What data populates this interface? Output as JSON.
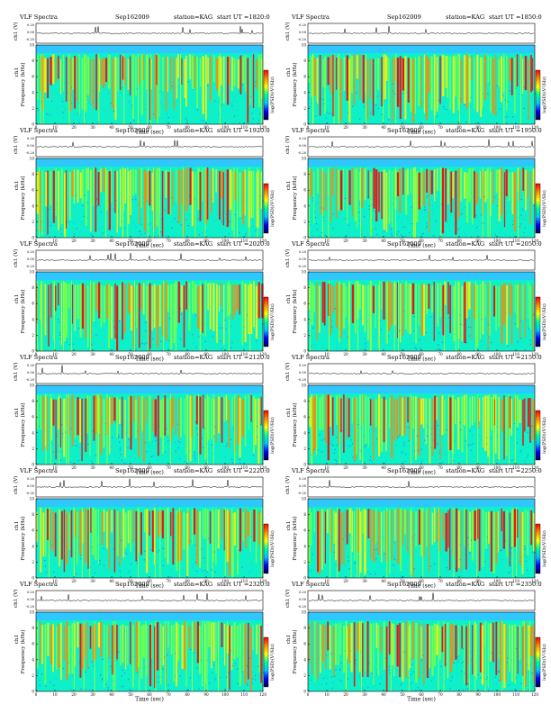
{
  "panels": [
    {
      "name": "VLF Spectra",
      "date": "Sep162009",
      "station": "station=KAG",
      "start": "start  UT  =1820:0"
    },
    {
      "name": "VLF Spectra",
      "date": "Sep162009",
      "station": "station=KAG",
      "start": "start  UT  =1850:0"
    },
    {
      "name": "VLF Spectra",
      "date": "Sep162009",
      "station": "station=KAG",
      "start": "start  UT  =1920:0"
    },
    {
      "name": "VLF Spectra",
      "date": "Sep162009",
      "station": "station=KAG",
      "start": "start  UT  =1950:0"
    },
    {
      "name": "VLF Spectra",
      "date": "Sep162009",
      "station": "station=KAG",
      "start": "start  UT  =2020:0"
    },
    {
      "name": "VLF Spectra",
      "date": "Sep162009",
      "station": "station=KAG",
      "start": "start  UT  =2050:0"
    },
    {
      "name": "VLF Spectra",
      "date": "Sep162009",
      "station": "station=KAG",
      "start": "start  UT  =2120:0"
    },
    {
      "name": "VLF Spectra",
      "date": "Sep162009",
      "station": "station=KAG",
      "start": "start  UT  =2150:0"
    },
    {
      "name": "VLF Spectra",
      "date": "Sep162009",
      "station": "station=KAG",
      "start": "start  UT  =2220:0"
    },
    {
      "name": "VLF Spectra",
      "date": "Sep162009",
      "station": "station=KAG",
      "start": "start  UT  =2250:0"
    },
    {
      "name": "VLF Spectra",
      "date": "Sep162009",
      "station": "station=KAG",
      "start": "start  UT  =2320:0"
    },
    {
      "name": "VLF Spectra",
      "date": "Sep162009",
      "station": "station=KAG",
      "start": "start  UT  =2350:0"
    }
  ],
  "chart_data": {
    "type": "heatmap",
    "panel_count": 12,
    "xlabel": "Time (sec)",
    "xlim": [
      0,
      120
    ],
    "xticks": [
      0,
      10,
      20,
      30,
      40,
      50,
      60,
      70,
      80,
      90,
      100,
      110,
      120
    ],
    "ylabel": "Frequency (kHz)",
    "ylabel_prefix": "ch1",
    "ylim": [
      0,
      10
    ],
    "yticks": [
      0,
      2,
      4,
      6,
      8,
      10
    ],
    "waveform_ylabel": "ch1 (V)",
    "waveform_yticks": [
      "0.20",
      "0.00",
      "-0.20"
    ],
    "colorbar_label": "log(PSD)(V²/Hz)",
    "colorbar_colors": [
      "#00004a",
      "#0000ff",
      "#00c8ff",
      "#00ff96",
      "#ffff00",
      "#ff8c00",
      "#ff0000"
    ]
  }
}
